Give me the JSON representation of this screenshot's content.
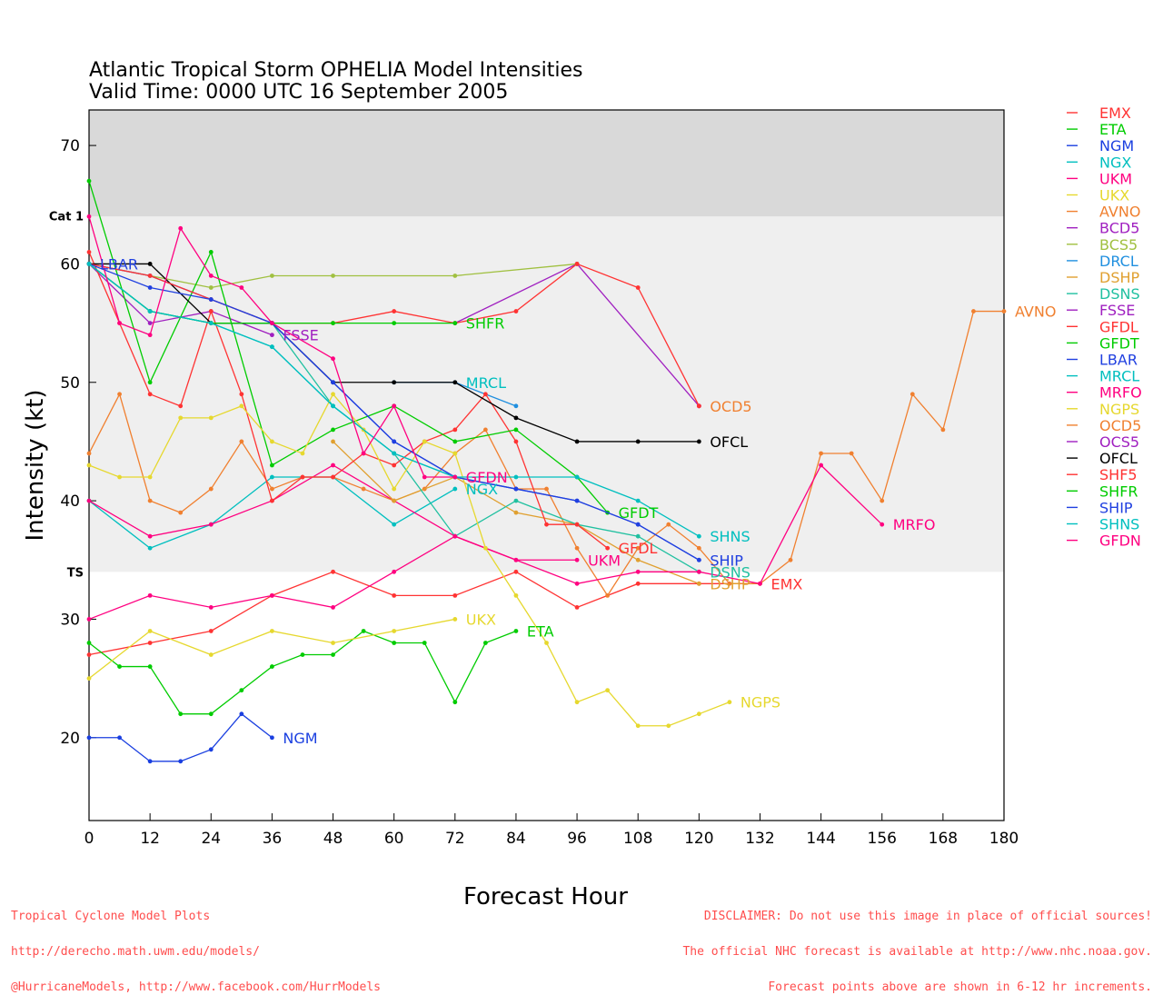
{
  "title_line1": "Atlantic Tropical Storm OPHELIA Model Intensities",
  "title_line2": "Valid Time: 0000 UTC 16 September 2005",
  "footer_left": [
    "Tropical Cyclone Model Plots",
    "http://derecho.math.uwm.edu/models/",
    "@HurricaneModels, http://www.facebook.com/HurrModels"
  ],
  "footer_right": [
    "DISCLAIMER: Do not use this image in place of official sources!",
    "The official NHC forecast is available at http://www.nhc.noaa.gov.",
    "Forecast points above are shown in 6-12 hr increments."
  ],
  "chart_data": {
    "type": "line",
    "xlabel": "Forecast Hour",
    "ylabel": "Intensity (kt)",
    "xlim": [
      0,
      180
    ],
    "ylim": [
      13,
      73
    ],
    "xticks": [
      0,
      12,
      24,
      36,
      48,
      60,
      72,
      84,
      96,
      108,
      120,
      132,
      144,
      156,
      168,
      180
    ],
    "yticks": [
      20,
      30,
      40,
      50,
      60,
      70
    ],
    "bands": [
      {
        "from": 64,
        "to": 73,
        "color": "#d9d9d9",
        "label": "Cat 1"
      },
      {
        "from": 34,
        "to": 64,
        "color": "#efefef",
        "label": "TS"
      }
    ],
    "legend_position": "right",
    "series": [
      {
        "name": "EMX",
        "color": "#ff3333",
        "x": [
          0,
          12,
          24,
          36,
          48,
          60,
          72,
          84,
          96,
          108,
          120,
          132
        ],
        "y": [
          27,
          28,
          29,
          32,
          34,
          32,
          32,
          34,
          31,
          33,
          33,
          33
        ]
      },
      {
        "name": "ETA",
        "color": "#00cc00",
        "x": [
          0,
          6,
          12,
          18,
          24,
          30,
          36,
          42,
          48,
          54,
          60,
          66,
          72,
          78,
          84
        ],
        "y": [
          28,
          26,
          26,
          22,
          22,
          24,
          26,
          27,
          27,
          29,
          28,
          28,
          23,
          28,
          29
        ]
      },
      {
        "name": "NGM",
        "color": "#1a3fe0",
        "x": [
          0,
          6,
          12,
          18,
          24,
          30,
          36
        ],
        "y": [
          20,
          20,
          18,
          18,
          19,
          22,
          20
        ]
      },
      {
        "name": "NGX",
        "color": "#00bfbf",
        "x": [
          0,
          12,
          24,
          36,
          48,
          60,
          72
        ],
        "y": [
          40,
          36,
          38,
          42,
          42,
          38,
          41
        ]
      },
      {
        "name": "UKM",
        "color": "#ff0080",
        "x": [
          0,
          12,
          24,
          36,
          48,
          60,
          72,
          84,
          96
        ],
        "y": [
          40,
          37,
          38,
          40,
          43,
          40,
          37,
          35,
          35
        ]
      },
      {
        "name": "UKX",
        "color": "#e6d82e",
        "x": [
          0,
          12,
          24,
          36,
          48,
          60,
          72
        ],
        "y": [
          25,
          29,
          27,
          29,
          28,
          29,
          30
        ]
      },
      {
        "name": "AVNO",
        "color": "#f08030",
        "x": [
          0,
          6,
          12,
          18,
          24,
          30,
          36,
          42,
          48,
          54,
          60,
          66,
          72,
          78,
          84,
          90,
          96,
          102,
          108,
          114,
          120,
          126,
          132,
          138,
          144,
          150,
          156,
          162,
          168,
          174,
          180
        ],
        "y": [
          44,
          49,
          40,
          39,
          41,
          45,
          41,
          42,
          42,
          41,
          40,
          41,
          44,
          46,
          41,
          41,
          36,
          32,
          36,
          38,
          36,
          33,
          33,
          35,
          44,
          44,
          40,
          49,
          46,
          56,
          56
        ]
      },
      {
        "name": "BCD5",
        "color": "#a020c0",
        "x": [
          72,
          96,
          120
        ],
        "y": [
          55,
          60,
          48
        ]
      },
      {
        "name": "BCS5",
        "color": "#a0c040",
        "x": [
          0,
          24,
          36,
          48,
          72,
          96
        ],
        "y": [
          60,
          58,
          59,
          59,
          59,
          60
        ]
      },
      {
        "name": "DRCL",
        "color": "#1f8fdf",
        "x": [
          60,
          72,
          84
        ],
        "y": [
          50,
          50,
          48
        ]
      },
      {
        "name": "DSHP",
        "color": "#e0a030",
        "x": [
          48,
          60,
          72,
          84,
          96,
          108,
          120
        ],
        "y": [
          45,
          40,
          42,
          39,
          38,
          35,
          33
        ]
      },
      {
        "name": "DSNS",
        "color": "#20c0a0",
        "x": [
          0,
          12,
          24,
          36,
          48,
          60,
          72,
          84,
          96,
          108,
          120
        ],
        "y": [
          60,
          56,
          55,
          55,
          48,
          44,
          37,
          40,
          38,
          37,
          34
        ]
      },
      {
        "name": "FSSE",
        "color": "#a020c0",
        "x": [
          0,
          12,
          24,
          36
        ],
        "y": [
          60,
          55,
          56,
          54
        ]
      },
      {
        "name": "GFDL",
        "color": "#ff3333",
        "x": [
          0,
          6,
          12,
          18,
          24,
          30,
          36,
          42,
          48,
          54,
          60,
          66,
          72,
          78,
          84,
          90,
          96,
          102
        ],
        "y": [
          61,
          55,
          49,
          48,
          56,
          49,
          40,
          42,
          42,
          44,
          43,
          45,
          46,
          49,
          45,
          38,
          38,
          36
        ]
      },
      {
        "name": "GFDT",
        "color": "#00cc00",
        "x": [
          0,
          12,
          24,
          36,
          48,
          60,
          72,
          84,
          96,
          102
        ],
        "y": [
          67,
          50,
          61,
          43,
          46,
          48,
          45,
          46,
          42,
          39
        ]
      },
      {
        "name": "LBAR",
        "color": "#2040e0",
        "x": [
          0,
          12,
          24,
          36,
          48,
          60,
          72,
          84,
          96,
          108,
          120
        ],
        "y": [
          60,
          59,
          57,
          55,
          50,
          45,
          42,
          41,
          40,
          38,
          35
        ]
      },
      {
        "name": "MRCL",
        "color": "#00bfbf",
        "x": [
          0,
          12,
          24,
          36,
          48,
          60,
          72
        ],
        "y": [
          60,
          56,
          55,
          53,
          48,
          44,
          42
        ]
      },
      {
        "name": "MRFO",
        "color": "#ff0080",
        "x": [
          0,
          12,
          24,
          36,
          48,
          60,
          72,
          84,
          96,
          108,
          120,
          132,
          144,
          156
        ],
        "y": [
          30,
          32,
          31,
          32,
          31,
          34,
          37,
          35,
          33,
          34,
          34,
          33,
          43,
          38
        ]
      },
      {
        "name": "NGPS",
        "color": "#e6d82e",
        "x": [
          0,
          6,
          12,
          18,
          24,
          30,
          36,
          42,
          48,
          54,
          60,
          66,
          72,
          78,
          84,
          90,
          96,
          102,
          108,
          114,
          120,
          126
        ],
        "y": [
          43,
          42,
          42,
          47,
          47,
          48,
          45,
          44,
          49,
          46,
          41,
          45,
          44,
          36,
          32,
          28,
          23,
          24,
          21,
          21,
          22,
          23
        ]
      },
      {
        "name": "OCD5",
        "color": "#f08030",
        "x": [
          120
        ],
        "y": [
          48
        ]
      },
      {
        "name": "OCS5",
        "color": "#a020c0",
        "x": [
          120
        ],
        "y": [
          48
        ]
      },
      {
        "name": "OFCL",
        "color": "#000000",
        "x": [
          0,
          12,
          24,
          36,
          48,
          60,
          72,
          84,
          96,
          108,
          120
        ],
        "y": [
          60,
          60,
          55,
          55,
          50,
          50,
          50,
          47,
          45,
          45,
          45
        ]
      },
      {
        "name": "SHF5",
        "color": "#ff3333",
        "x": [
          0,
          12,
          24,
          36,
          48,
          60,
          72,
          84,
          96,
          108,
          120
        ],
        "y": [
          60,
          59,
          57,
          55,
          55,
          56,
          55,
          56,
          60,
          58,
          48
        ]
      },
      {
        "name": "SHFR",
        "color": "#00cc00",
        "x": [
          0,
          12,
          24,
          36,
          48,
          60,
          72
        ],
        "y": [
          60,
          56,
          55,
          55,
          55,
          55,
          55
        ]
      },
      {
        "name": "SHIP",
        "color": "#2040e0",
        "x": [
          0,
          12,
          24,
          36,
          48,
          60,
          72,
          84,
          96,
          108,
          120
        ],
        "y": [
          60,
          58,
          57,
          55,
          50,
          45,
          42,
          41,
          40,
          38,
          35
        ]
      },
      {
        "name": "SHNS",
        "color": "#00bfbf",
        "x": [
          0,
          12,
          24,
          36,
          48,
          60,
          72,
          84,
          96,
          108,
          120
        ],
        "y": [
          60,
          56,
          55,
          53,
          48,
          44,
          42,
          42,
          42,
          40,
          37
        ]
      },
      {
        "name": "GFDN",
        "color": "#ff0080",
        "x": [
          0,
          6,
          12,
          18,
          24,
          30,
          36,
          48,
          54,
          60,
          66,
          72
        ],
        "y": [
          64,
          55,
          54,
          63,
          59,
          58,
          55,
          52,
          44,
          48,
          42,
          42
        ]
      }
    ],
    "labels": [
      {
        "text": "AVNO",
        "series": "AVNO",
        "x": 180,
        "y": 56
      },
      {
        "text": "MRFO",
        "series": "MRFO",
        "x": 156,
        "y": 38
      },
      {
        "text": "EMX",
        "series": "EMX",
        "x": 132,
        "y": 33
      },
      {
        "text": "OCD5",
        "series": "OCD5",
        "x": 120,
        "y": 48
      },
      {
        "text": "OFCL",
        "series": "OFCL",
        "x": 120,
        "y": 45
      },
      {
        "text": "SHNS",
        "series": "SHNS",
        "x": 120,
        "y": 37
      },
      {
        "text": "SHIP",
        "series": "SHIP",
        "x": 120,
        "y": 35
      },
      {
        "text": "DSNS",
        "series": "DSNS",
        "x": 120,
        "y": 34
      },
      {
        "text": "DSHP",
        "series": "DSHP",
        "x": 120,
        "y": 33
      },
      {
        "text": "GFDT",
        "series": "GFDT",
        "x": 102,
        "y": 39
      },
      {
        "text": "GFDL",
        "series": "GFDL",
        "x": 102,
        "y": 36
      },
      {
        "text": "UKM",
        "series": "UKM",
        "x": 96,
        "y": 35
      },
      {
        "text": "NGPS",
        "series": "NGPS",
        "x": 126,
        "y": 23
      },
      {
        "text": "ETA",
        "series": "ETA",
        "x": 84,
        "y": 29
      },
      {
        "text": "UKX",
        "series": "UKX",
        "x": 72,
        "y": 30
      },
      {
        "text": "SHFR",
        "series": "SHFR",
        "x": 72,
        "y": 55
      },
      {
        "text": "MRCL",
        "series": "MRCL",
        "x": 72,
        "y": 50
      },
      {
        "text": "GFDN",
        "series": "GFDN",
        "x": 72,
        "y": 42
      },
      {
        "text": "NGX",
        "series": "NGX",
        "x": 72,
        "y": 41
      },
      {
        "text": "FSSE",
        "series": "FSSE",
        "x": 36,
        "y": 54
      },
      {
        "text": "NGM",
        "series": "NGM",
        "x": 36,
        "y": 20
      },
      {
        "text": "LBAR",
        "series": "LBAR",
        "x": 0,
        "y": 60
      }
    ]
  }
}
